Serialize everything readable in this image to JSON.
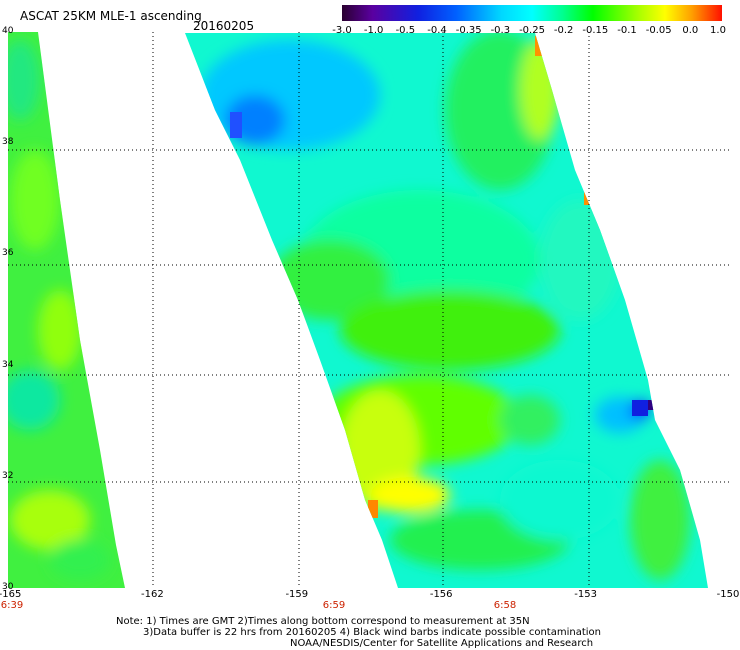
{
  "header": {
    "title": "ASCAT 25KM MLE-1 ascending",
    "date": "20160205"
  },
  "colorbar": {
    "tick_labels": [
      "-3.0",
      "-1.0",
      "-0.5",
      "-0.4",
      "-0.35",
      "-0.3",
      "-0.25",
      "-0.2",
      "-0.15",
      "-0.1",
      "-0.05",
      "0.0",
      "1.0"
    ],
    "colors": [
      "#3a0050",
      "#5a00a0",
      "#2a10d8",
      "#0040ff",
      "#0090ff",
      "#00d0ff",
      "#00ffff",
      "#00ff80",
      "#00ff00",
      "#a0ff00",
      "#ffff00",
      "#ffa000",
      "#ff2000"
    ]
  },
  "map": {
    "lat_labels": [
      "40",
      "38",
      "36",
      "34",
      "32",
      "30"
    ],
    "lon_labels": [
      "-165",
      "-162",
      "-159",
      "-156",
      "-153",
      "-150"
    ],
    "time_labels": [
      "6:39",
      "6:59",
      "6:58"
    ],
    "lat_range": [
      30,
      40
    ],
    "lon_range": [
      -165,
      -150
    ],
    "swaths": [
      {
        "name": "west-swath",
        "dominant_value_range": [
          -0.2,
          -0.1
        ]
      },
      {
        "name": "main-swath",
        "dominant_value_range": [
          -0.3,
          -0.05
        ]
      }
    ]
  },
  "footer": {
    "note_line1": "Note: 1) Times are GMT 2)Times along bottom correspond to measurement at 35N",
    "note_line2": "3)Data buffer is 22 hrs from 20160205 4) Black wind barbs indicate possible contamination",
    "note_line3": "NOAA/NESDIS/Center for Satellite Applications and Research"
  }
}
